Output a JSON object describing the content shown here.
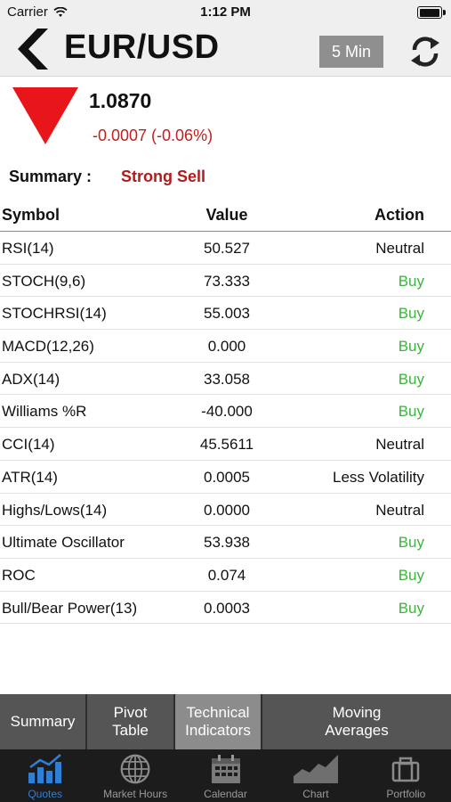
{
  "status_bar": {
    "carrier": "Carrier",
    "time": "1:12 PM"
  },
  "header": {
    "title": "EUR/USD",
    "interval": "5 Min",
    "back_icon": "chevron-left-icon",
    "refresh_icon": "refresh-icon"
  },
  "quote": {
    "price": "1.0870",
    "change": "-0.0007 (-0.06%)",
    "direction": "down",
    "change_color": "#c0201f"
  },
  "summary": {
    "label": "Summary :",
    "value": "Strong Sell",
    "value_color": "#b01c1c"
  },
  "table": {
    "headers": {
      "symbol": "Symbol",
      "value": "Value",
      "action": "Action"
    },
    "rows": [
      {
        "symbol": "RSI(14)",
        "value": "50.527",
        "action": "Neutral"
      },
      {
        "symbol": "STOCH(9,6)",
        "value": "73.333",
        "action": "Buy"
      },
      {
        "symbol": "STOCHRSI(14)",
        "value": "55.003",
        "action": "Buy"
      },
      {
        "symbol": "MACD(12,26)",
        "value": "0.000",
        "action": "Buy"
      },
      {
        "symbol": "ADX(14)",
        "value": "33.058",
        "action": "Buy"
      },
      {
        "symbol": "Williams %R",
        "value": "-40.000",
        "action": "Buy"
      },
      {
        "symbol": "CCI(14)",
        "value": "45.5611",
        "action": "Neutral"
      },
      {
        "symbol": "ATR(14)",
        "value": "0.0005",
        "action": "Less Volatility"
      },
      {
        "symbol": "Highs/Lows(14)",
        "value": "0.0000",
        "action": "Neutral"
      },
      {
        "symbol": "Ultimate Oscillator",
        "value": "53.938",
        "action": "Buy"
      },
      {
        "symbol": "ROC",
        "value": "0.074",
        "action": "Buy"
      },
      {
        "symbol": "Bull/Bear Power(13)",
        "value": "0.0003",
        "action": "Buy"
      }
    ]
  },
  "segments": [
    {
      "line1": "Summary",
      "line2": "",
      "active": false
    },
    {
      "line1": "Pivot",
      "line2": "Table",
      "active": false
    },
    {
      "line1": "Technical",
      "line2": "Indicators",
      "active": true
    },
    {
      "line1": "Moving",
      "line2": "Averages",
      "active": false
    }
  ],
  "tabbar": [
    {
      "label": "Quotes",
      "icon": "bar-chart-icon",
      "active": true
    },
    {
      "label": "Market Hours",
      "icon": "globe-icon",
      "active": false
    },
    {
      "label": "Calendar",
      "icon": "calendar-icon",
      "active": false
    },
    {
      "label": "Chart",
      "icon": "area-chart-icon",
      "active": false
    },
    {
      "label": "Portfolio",
      "icon": "briefcase-icon",
      "active": false
    }
  ],
  "colors": {
    "buy": "#3ab53a",
    "sell": "#c0201f",
    "tab_active": "#2f7fd6"
  }
}
